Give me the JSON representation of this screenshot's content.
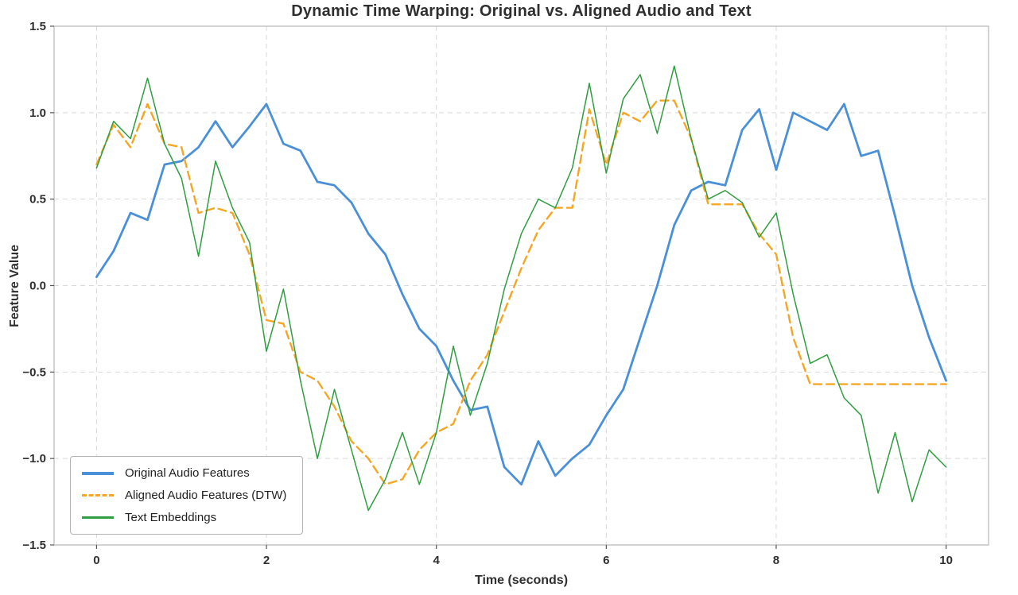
{
  "chart_data": {
    "type": "line",
    "title": "Dynamic Time Warping: Original vs. Aligned Audio and Text",
    "xlabel": "Time (seconds)",
    "ylabel": "Feature Value",
    "xlim": [
      -0.5,
      10.5
    ],
    "ylim": [
      -1.5,
      1.5
    ],
    "xticks": [
      0,
      2,
      4,
      6,
      8,
      10
    ],
    "yticks": [
      -1.5,
      -1.0,
      -0.5,
      0.0,
      0.5,
      1.0,
      1.5
    ],
    "xtick_labels": [
      "0",
      "2",
      "4",
      "6",
      "8",
      "10"
    ],
    "ytick_labels": [
      "−1.5",
      "−1.0",
      "−0.5",
      "0.0",
      "0.5",
      "1.0",
      "1.5"
    ],
    "grid": "dashed",
    "grid_color": "#d9d9d9",
    "frame_color": "#b6b6b6",
    "legend_position": "lower-left",
    "x": [
      0.0,
      0.2,
      0.4,
      0.6,
      0.8,
      1.0,
      1.2,
      1.4,
      1.6,
      1.8,
      2.0,
      2.2,
      2.4,
      2.6,
      2.8,
      3.0,
      3.2,
      3.4,
      3.6,
      3.8,
      4.0,
      4.2,
      4.4,
      4.6,
      4.8,
      5.0,
      5.2,
      5.4,
      5.6,
      5.8,
      6.0,
      6.2,
      6.4,
      6.6,
      6.8,
      7.0,
      7.2,
      7.4,
      7.6,
      7.8,
      8.0,
      8.2,
      8.4,
      8.6,
      8.8,
      9.0,
      9.2,
      9.4,
      9.6,
      9.8,
      10.0
    ],
    "series": [
      {
        "name": "Original Audio Features",
        "color": "#4a90d9",
        "style": "solid",
        "width": 2.8,
        "values": [
          0.05,
          0.2,
          0.42,
          0.38,
          0.7,
          0.72,
          0.8,
          0.95,
          0.8,
          0.92,
          1.05,
          0.82,
          0.78,
          0.6,
          0.58,
          0.48,
          0.3,
          0.18,
          -0.05,
          -0.25,
          -0.35,
          -0.55,
          -0.72,
          -0.7,
          -1.05,
          -1.15,
          -0.9,
          -1.1,
          -1.0,
          -0.92,
          -0.75,
          -0.6,
          -0.3,
          0.0,
          0.35,
          0.55,
          0.6,
          0.58,
          0.9,
          1.02,
          0.67,
          1.0,
          0.95,
          0.9,
          1.05,
          0.75,
          0.78,
          0.4,
          0.0,
          -0.3,
          -0.55
        ]
      },
      {
        "name": "Aligned Audio Features (DTW)",
        "color": "#f5a623",
        "style": "dashed",
        "width": 2.4,
        "values": [
          0.7,
          0.93,
          0.8,
          1.05,
          0.82,
          0.8,
          0.42,
          0.45,
          0.42,
          0.18,
          -0.2,
          -0.22,
          -0.5,
          -0.55,
          -0.7,
          -0.9,
          -1.0,
          -1.15,
          -1.12,
          -0.95,
          -0.85,
          -0.8,
          -0.55,
          -0.4,
          -0.15,
          0.1,
          0.32,
          0.45,
          0.45,
          1.02,
          0.7,
          1.0,
          0.95,
          1.07,
          1.07,
          0.85,
          0.47,
          0.47,
          0.47,
          0.3,
          0.18,
          -0.3,
          -0.57,
          -0.57,
          -0.57,
          -0.57,
          -0.57,
          -0.57,
          -0.57,
          -0.57,
          -0.57
        ]
      },
      {
        "name": "Text Embeddings",
        "color": "#2f9e41",
        "style": "solid",
        "width": 1.5,
        "values": [
          0.68,
          0.95,
          0.85,
          1.2,
          0.82,
          0.62,
          0.17,
          0.72,
          0.45,
          0.25,
          -0.38,
          -0.02,
          -0.55,
          -1.0,
          -0.6,
          -0.95,
          -1.3,
          -1.12,
          -0.85,
          -1.15,
          -0.85,
          -0.35,
          -0.75,
          -0.45,
          -0.02,
          0.3,
          0.5,
          0.45,
          0.68,
          1.17,
          0.65,
          1.08,
          1.22,
          0.88,
          1.27,
          0.85,
          0.5,
          0.55,
          0.48,
          0.28,
          0.42,
          -0.05,
          -0.45,
          -0.4,
          -0.65,
          -0.75,
          -1.2,
          -0.85,
          -1.25,
          -0.95,
          -1.05
        ]
      }
    ]
  }
}
